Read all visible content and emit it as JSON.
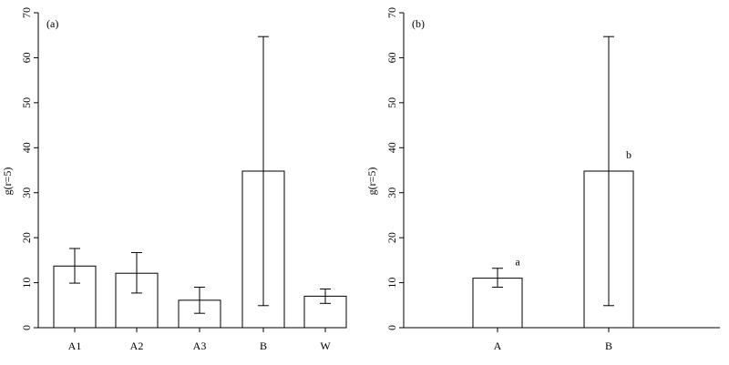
{
  "chart_data": [
    {
      "type": "bar",
      "panel_label": "(a)",
      "ylabel": "g(r=5)",
      "ylim": [
        0,
        70
      ],
      "yticks": [
        0,
        10,
        20,
        30,
        40,
        50,
        60,
        70
      ],
      "categories": [
        "A1",
        "A2",
        "A3",
        "B",
        "W"
      ],
      "values": [
        13.7,
        12.1,
        6.1,
        34.8,
        7.0
      ],
      "error_low": [
        9.9,
        7.7,
        3.2,
        4.9,
        5.4
      ],
      "error_high": [
        17.6,
        16.7,
        9.0,
        64.7,
        8.6
      ],
      "annotations": [
        "",
        "",
        "",
        "",
        ""
      ],
      "grid": false
    },
    {
      "type": "bar",
      "panel_label": "(b)",
      "ylabel": "g(r=5)",
      "ylim": [
        0,
        70
      ],
      "yticks": [
        0,
        10,
        20,
        30,
        40,
        50,
        60,
        70
      ],
      "categories": [
        "A",
        "B"
      ],
      "values": [
        11.0,
        34.8
      ],
      "error_low": [
        9.0,
        4.9
      ],
      "error_high": [
        13.2,
        64.7
      ],
      "annotations": [
        "a",
        "b"
      ],
      "grid": false
    }
  ]
}
